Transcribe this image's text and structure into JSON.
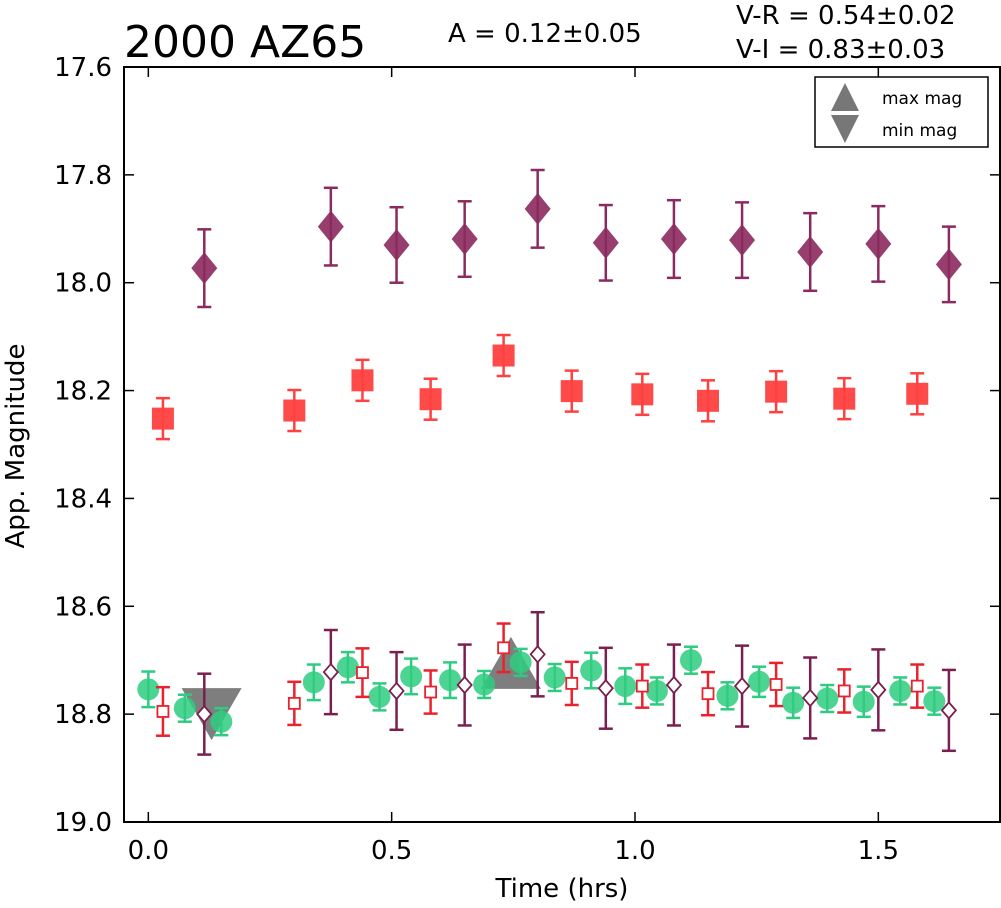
{
  "chart_data": {
    "type": "scatter",
    "title": "2000 AZ65",
    "annotations": {
      "amplitude": "A  = 0.12±0.05",
      "vr": "V-R = 0.54±0.02",
      "vi": "V-I  = 0.83±0.03"
    },
    "xlabel": "Time (hrs)",
    "ylabel": "App. Magnitude",
    "xlim": [
      -0.05,
      1.75
    ],
    "ylim": [
      19.0,
      17.6
    ],
    "y_inverted": true,
    "xticks": [
      0.0,
      0.5,
      1.0,
      1.5
    ],
    "xtick_labels": [
      "0.0",
      "0.5",
      "1.0",
      "1.5"
    ],
    "yticks": [
      17.6,
      17.8,
      18.0,
      18.2,
      18.4,
      18.6,
      18.8,
      19.0
    ],
    "ytick_labels": [
      "17.6",
      "17.8",
      "18.0",
      "18.2",
      "18.4",
      "18.6",
      "18.8",
      "19.0"
    ],
    "grid": false,
    "legend": {
      "placement": "top-right",
      "entries": [
        {
          "label": "max mag",
          "marker": "triangle-up",
          "color": "#777777"
        },
        {
          "label": "min mag",
          "marker": "triangle-down",
          "color": "#777777"
        }
      ]
    },
    "series": [
      {
        "marker": "diamond-filled",
        "color": "#8b2a5e",
        "points": [
          {
            "x": 0.115,
            "y": 17.973,
            "err": 0.072
          },
          {
            "x": 0.375,
            "y": 17.896,
            "err": 0.072
          },
          {
            "x": 0.51,
            "y": 17.93,
            "err": 0.07
          },
          {
            "x": 0.65,
            "y": 17.919,
            "err": 0.07
          },
          {
            "x": 0.8,
            "y": 17.863,
            "err": 0.072
          },
          {
            "x": 0.94,
            "y": 17.926,
            "err": 0.07
          },
          {
            "x": 1.08,
            "y": 17.919,
            "err": 0.072
          },
          {
            "x": 1.22,
            "y": 17.921,
            "err": 0.07
          },
          {
            "x": 1.36,
            "y": 17.943,
            "err": 0.072
          },
          {
            "x": 1.5,
            "y": 17.928,
            "err": 0.07
          },
          {
            "x": 1.645,
            "y": 17.966,
            "err": 0.07
          }
        ]
      },
      {
        "marker": "square-filled",
        "color": "#ff4040",
        "points": [
          {
            "x": 0.03,
            "y": 18.252,
            "err": 0.038
          },
          {
            "x": 0.3,
            "y": 18.237,
            "err": 0.038
          },
          {
            "x": 0.44,
            "y": 18.181,
            "err": 0.038
          },
          {
            "x": 0.58,
            "y": 18.216,
            "err": 0.038
          },
          {
            "x": 0.73,
            "y": 18.135,
            "err": 0.038
          },
          {
            "x": 0.87,
            "y": 18.201,
            "err": 0.038
          },
          {
            "x": 1.015,
            "y": 18.207,
            "err": 0.038
          },
          {
            "x": 1.15,
            "y": 18.219,
            "err": 0.038
          },
          {
            "x": 1.29,
            "y": 18.202,
            "err": 0.038
          },
          {
            "x": 1.43,
            "y": 18.215,
            "err": 0.038
          },
          {
            "x": 1.58,
            "y": 18.206,
            "err": 0.038
          }
        ]
      },
      {
        "marker": "circle-filled",
        "color": "#2ecc80",
        "points": [
          {
            "x": 0.0,
            "y": 18.754,
            "err": 0.033
          },
          {
            "x": 0.075,
            "y": 18.789,
            "err": 0.025
          },
          {
            "x": 0.15,
            "y": 18.814,
            "err": 0.025
          },
          {
            "x": 0.34,
            "y": 18.741,
            "err": 0.033
          },
          {
            "x": 0.41,
            "y": 18.713,
            "err": 0.028
          },
          {
            "x": 0.475,
            "y": 18.768,
            "err": 0.025
          },
          {
            "x": 0.54,
            "y": 18.73,
            "err": 0.033
          },
          {
            "x": 0.62,
            "y": 18.737,
            "err": 0.033
          },
          {
            "x": 0.69,
            "y": 18.745,
            "err": 0.025
          },
          {
            "x": 0.765,
            "y": 18.704,
            "err": 0.025
          },
          {
            "x": 0.835,
            "y": 18.732,
            "err": 0.025
          },
          {
            "x": 0.91,
            "y": 18.719,
            "err": 0.033
          },
          {
            "x": 0.98,
            "y": 18.748,
            "err": 0.033
          },
          {
            "x": 1.045,
            "y": 18.757,
            "err": 0.025
          },
          {
            "x": 1.115,
            "y": 18.7,
            "err": 0.025
          },
          {
            "x": 1.19,
            "y": 18.766,
            "err": 0.025
          },
          {
            "x": 1.255,
            "y": 18.74,
            "err": 0.028
          },
          {
            "x": 1.325,
            "y": 18.779,
            "err": 0.028
          },
          {
            "x": 1.395,
            "y": 18.771,
            "err": 0.025
          },
          {
            "x": 1.47,
            "y": 18.777,
            "err": 0.028
          },
          {
            "x": 1.545,
            "y": 18.757,
            "err": 0.025
          },
          {
            "x": 1.615,
            "y": 18.776,
            "err": 0.025
          }
        ]
      },
      {
        "marker": "square-open",
        "color": "#e8232d",
        "points": [
          {
            "x": 0.03,
            "y": 18.795,
            "err": 0.045
          },
          {
            "x": 0.3,
            "y": 18.78,
            "err": 0.04
          },
          {
            "x": 0.44,
            "y": 18.723,
            "err": 0.045
          },
          {
            "x": 0.58,
            "y": 18.759,
            "err": 0.04
          },
          {
            "x": 0.73,
            "y": 18.677,
            "err": 0.045
          },
          {
            "x": 0.87,
            "y": 18.743,
            "err": 0.04
          },
          {
            "x": 1.015,
            "y": 18.748,
            "err": 0.04
          },
          {
            "x": 1.15,
            "y": 18.762,
            "err": 0.04
          },
          {
            "x": 1.29,
            "y": 18.745,
            "err": 0.04
          },
          {
            "x": 1.43,
            "y": 18.757,
            "err": 0.04
          },
          {
            "x": 1.58,
            "y": 18.748,
            "err": 0.04
          }
        ]
      },
      {
        "marker": "diamond-open",
        "color": "#7a1f4f",
        "points": [
          {
            "x": 0.115,
            "y": 18.8,
            "err": 0.075
          },
          {
            "x": 0.375,
            "y": 18.722,
            "err": 0.078
          },
          {
            "x": 0.51,
            "y": 18.757,
            "err": 0.072
          },
          {
            "x": 0.65,
            "y": 18.746,
            "err": 0.075
          },
          {
            "x": 0.8,
            "y": 18.689,
            "err": 0.078
          },
          {
            "x": 0.94,
            "y": 18.752,
            "err": 0.075
          },
          {
            "x": 1.08,
            "y": 18.746,
            "err": 0.075
          },
          {
            "x": 1.22,
            "y": 18.748,
            "err": 0.075
          },
          {
            "x": 1.36,
            "y": 18.77,
            "err": 0.075
          },
          {
            "x": 1.5,
            "y": 18.755,
            "err": 0.075
          },
          {
            "x": 1.645,
            "y": 18.793,
            "err": 0.075
          }
        ]
      }
    ],
    "extrema": [
      {
        "type": "min",
        "x": 0.13,
        "y": 18.8,
        "color": "#777777"
      },
      {
        "type": "max",
        "x": 0.745,
        "y": 18.705,
        "color": "#777777"
      }
    ]
  }
}
